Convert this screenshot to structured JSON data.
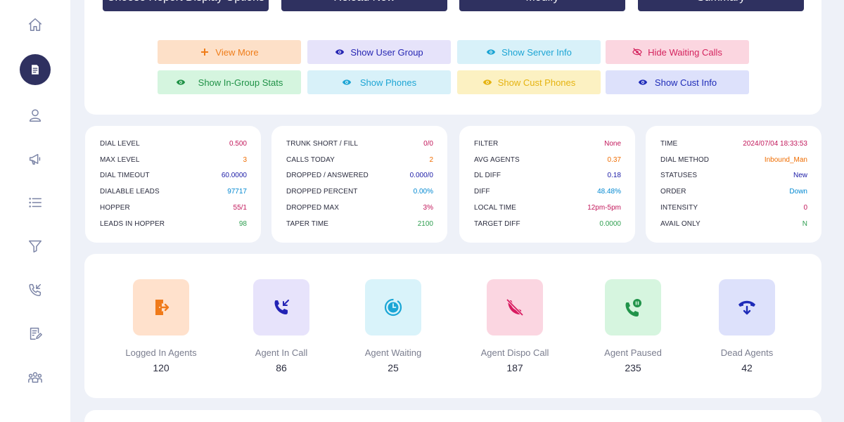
{
  "sidebar": {
    "items": [
      {
        "icon": "home-icon"
      },
      {
        "icon": "report-icon",
        "active": true
      },
      {
        "icon": "user-icon"
      },
      {
        "icon": "megaphone-icon"
      },
      {
        "icon": "list-icon"
      },
      {
        "icon": "filter-icon"
      },
      {
        "icon": "phone-incoming-icon"
      },
      {
        "icon": "edit-document-icon"
      },
      {
        "icon": "group-icon"
      }
    ]
  },
  "toolbar": {
    "choose_report_label": "Choose Report Display Options",
    "reload_label": "Reload Now",
    "modify_label": "Modify",
    "summary_label": "Summary"
  },
  "toggles": {
    "view_more": "View More",
    "show_user_group": "Show User Group",
    "show_server_info": "Show Server Info",
    "hide_waiting_calls": "Hide Waiting Calls",
    "show_ingroup_stats": "Show In-Group Stats",
    "show_phones": "Show Phones",
    "show_cust_phones": "Show Cust Phones",
    "show_cust_info": "Show Cust Info"
  },
  "stats": {
    "card1": [
      {
        "label": "DIAL LEVEL",
        "value": "0.500",
        "color": "#c2185b"
      },
      {
        "label": "MAX LEVEL",
        "value": "3",
        "color": "#ef6c00"
      },
      {
        "label": "DIAL TIMEOUT",
        "value": "60.0000",
        "color": "#1a1aa6"
      },
      {
        "label": "DIALABLE LEADS",
        "value": "97717",
        "color": "#0288d1"
      },
      {
        "label": "HOPPER",
        "value": "55/1",
        "color": "#c2185b"
      },
      {
        "label": "LEADS IN HOPPER",
        "value": "98",
        "color": "#2e9e4f"
      }
    ],
    "card2": [
      {
        "label": "TRUNK SHORT / FILL",
        "value": "0/0",
        "color": "#c2185b"
      },
      {
        "label": "CALLS TODAY",
        "value": "2",
        "color": "#ef6c00"
      },
      {
        "label": "DROPPED / ANSWERED",
        "value": "0.000/0",
        "color": "#1a1aa6"
      },
      {
        "label": "DROPPED PERCENT",
        "value": "0.00%",
        "color": "#0288d1"
      },
      {
        "label": "DROPPED MAX",
        "value": "3%",
        "color": "#c2185b"
      },
      {
        "label": "TAPER TIME",
        "value": "2100",
        "color": "#2e9e4f"
      }
    ],
    "card3": [
      {
        "label": "FILTER",
        "value": "None",
        "color": "#c2185b"
      },
      {
        "label": "AVG AGENTS",
        "value": "0.37",
        "color": "#ef6c00"
      },
      {
        "label": "DL DIFF",
        "value": "0.18",
        "color": "#1a1aa6"
      },
      {
        "label": "DIFF",
        "value": "48.48%",
        "color": "#0288d1"
      },
      {
        "label": "LOCAL TIME",
        "value": "12pm-5pm",
        "color": "#c2185b"
      },
      {
        "label": "TARGET DIFF",
        "value": "0.0000",
        "color": "#2e9e4f"
      }
    ],
    "card4": [
      {
        "label": "TIME",
        "value": "2024/07/04 18:33:53",
        "color": "#c2185b"
      },
      {
        "label": "DIAL METHOD",
        "value": "Inbound_Man",
        "color": "#ef6c00"
      },
      {
        "label": "STATUSES",
        "value": "New",
        "color": "#1a1aa6"
      },
      {
        "label": "ORDER",
        "value": "Down",
        "color": "#0288d1"
      },
      {
        "label": "INTENSITY",
        "value": "0",
        "color": "#c2185b"
      },
      {
        "label": "AVAIL ONLY",
        "value": "N",
        "color": "#2e9e4f"
      }
    ]
  },
  "agents": [
    {
      "label": "Logged In Agents",
      "count": "120",
      "icon": "logout-door-icon",
      "bg": "#ffe1cc",
      "fg": "#f07a1a"
    },
    {
      "label": "Agent In Call",
      "count": "86",
      "icon": "phone-incoming-icon",
      "bg": "#e7e3fb",
      "fg": "#2323b5"
    },
    {
      "label": "Agent Waiting",
      "count": "25",
      "icon": "clock-icon",
      "bg": "#d9f3fa",
      "fg": "#1aa6d6"
    },
    {
      "label": "Agent Dispo Call",
      "count": "187",
      "icon": "phone-off-icon",
      "bg": "#fbd6e1",
      "fg": "#d81b60"
    },
    {
      "label": "Agent Paused",
      "count": "235",
      "icon": "phone-paused-icon",
      "bg": "#d6f5df",
      "fg": "#21934a"
    },
    {
      "label": "Dead Agents",
      "count": "42",
      "icon": "phone-hangup-icon",
      "bg": "#dde1fb",
      "fg": "#1e2bb8"
    }
  ]
}
